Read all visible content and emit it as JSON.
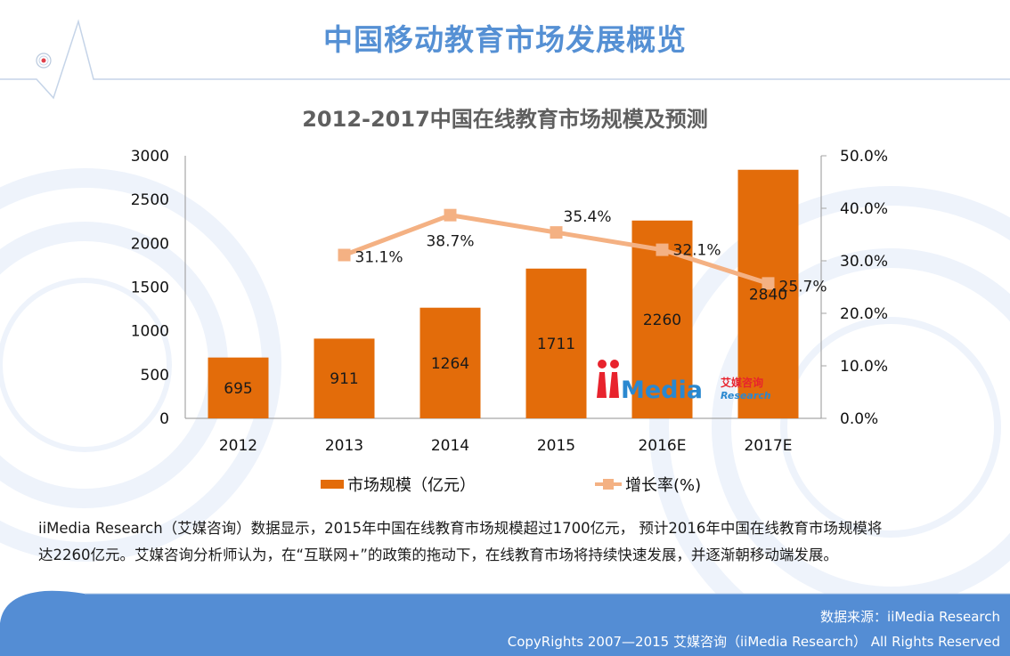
{
  "header": {
    "title": "中国移动教育市场发展概览"
  },
  "colors": {
    "title": "#5590d4",
    "bar": "#e36c0a",
    "line": "#f4b183",
    "footer": "#548dd4"
  },
  "chart_data": {
    "type": "bar+line",
    "title": "2012-2017中国在线教育市场规模及预测",
    "categories": [
      "2012",
      "2013",
      "2014",
      "2015",
      "2016E",
      "2017E"
    ],
    "series": [
      {
        "name": "市场规模（亿元）",
        "type": "bar",
        "axis": "left",
        "values": [
          695,
          911,
          1264,
          1711,
          2260,
          2840
        ],
        "labels": [
          "695",
          "911",
          "1264",
          "1711",
          "2260",
          "2840"
        ]
      },
      {
        "name": "增长率(%)",
        "type": "line",
        "axis": "right",
        "values": [
          null,
          31.1,
          38.7,
          35.4,
          32.1,
          25.7
        ],
        "labels": [
          "",
          "31.1%",
          "38.7%",
          "35.4%",
          "32.1%",
          "25.7%"
        ]
      }
    ],
    "y_left": {
      "range": [
        0,
        3000
      ],
      "ticks": [
        0,
        500,
        1000,
        1500,
        2000,
        2500,
        3000
      ],
      "tick_labels": [
        "0",
        "500",
        "1000",
        "1500",
        "2000",
        "2500",
        "3000"
      ]
    },
    "y_right": {
      "range": [
        0,
        50
      ],
      "ticks": [
        0,
        10,
        20,
        30,
        40,
        50
      ],
      "tick_labels": [
        "0.0%",
        "10.0%",
        "20.0%",
        "30.0%",
        "40.0%",
        "50.0%"
      ]
    },
    "grid": false,
    "legend_position": "bottom",
    "watermark": "iiMedia 艾媒咨询 Research"
  },
  "legend": {
    "bar_label": "市场规模（亿元）",
    "line_label": "增长率(%)"
  },
  "description": {
    "line1": "iiMedia Research（艾媒咨询）数据显示，2015年中国在线教育市场规模超过1700亿元， 预计2016年中国在线教育市场规模将",
    "line2": "达2260亿元。艾媒咨询分析师认为，在“互联网+”的政策的拖动下，在线教育市场将持续快速发展，并逐渐朝移动端发展。"
  },
  "footer": {
    "source": "数据来源：iiMedia Research",
    "copyright": "CopyRights 2007—2015 艾媒咨询（iiMedia Research） All Rights Reserved"
  }
}
